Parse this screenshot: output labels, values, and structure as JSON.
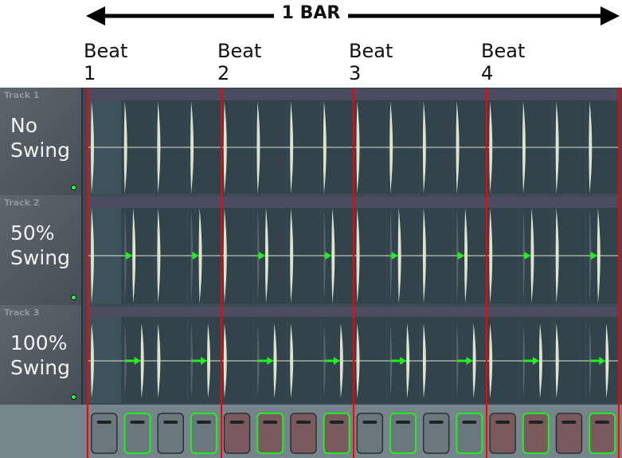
{
  "header": {
    "bar_label": "1 BAR",
    "beats": [
      {
        "word": "Beat",
        "num": "1"
      },
      {
        "word": "Beat",
        "num": "2"
      },
      {
        "word": "Beat",
        "num": "3"
      },
      {
        "word": "Beat",
        "num": "4"
      }
    ]
  },
  "tracks": [
    {
      "name": "Track 1",
      "label": "No Swing",
      "swing_percent": 0
    },
    {
      "name": "Track 2",
      "label": "50% Swing",
      "swing_percent": 50
    },
    {
      "name": "Track 3",
      "label": "100% Swing",
      "swing_percent": 100
    }
  ],
  "steps": 16,
  "pads": {
    "colors": [
      "grey",
      "grey",
      "grey",
      "grey",
      "red",
      "red",
      "red",
      "red",
      "grey",
      "grey",
      "grey",
      "grey",
      "red",
      "red",
      "red",
      "red"
    ],
    "highlighted_even_steps": true
  },
  "colors": {
    "beat_line": "#ff0000",
    "swing_arrow": "#22ee22",
    "wave": "#dde4cc",
    "pad_grey": "#6a777c",
    "pad_red": "#7a5a5c",
    "highlight": "#22ee22"
  }
}
